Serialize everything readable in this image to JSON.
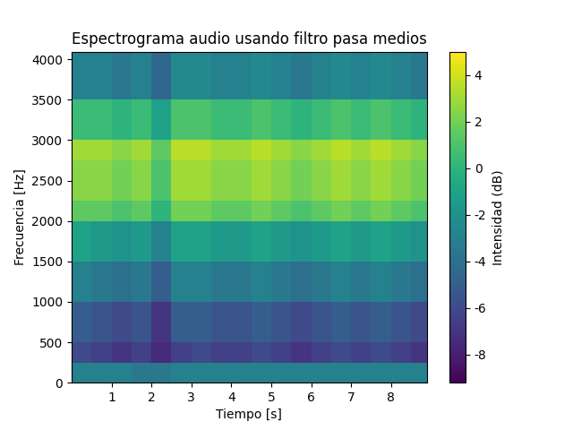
{
  "chart_data": {
    "type": "heatmap",
    "title": "Espectrograma audio usando filtro pasa medios",
    "x_label": "Tiempo [s]",
    "y_label": "Frecuencia [Hz]",
    "colorbar_label": "Intensidad (dB)",
    "x_edges": [
      0,
      0.5,
      1,
      1.5,
      2,
      2.5,
      3,
      3.5,
      4,
      4.5,
      5,
      5.5,
      6,
      6.5,
      7,
      7.5,
      8,
      8.5,
      8.9
    ],
    "y_edges": [
      0,
      250,
      500,
      1000,
      1500,
      2000,
      2250,
      2500,
      2750,
      3000,
      3500,
      4096
    ],
    "values": [
      [
        -3,
        -3,
        -3,
        -3.5,
        -3.5,
        -3,
        -3,
        -3,
        -3,
        -3,
        -3,
        -3,
        -3,
        -3,
        -3,
        -3,
        -3,
        -3
      ],
      [
        -6,
        -6.5,
        -7,
        -6.5,
        -7.5,
        -6.5,
        -6,
        -6.5,
        -6.5,
        -6,
        -6.5,
        -7,
        -6.5,
        -6,
        -6.5,
        -6,
        -6.5,
        -7
      ],
      [
        -5,
        -5.5,
        -6,
        -5.5,
        -7,
        -5,
        -5,
        -5.5,
        -5.5,
        -5,
        -5.5,
        -6,
        -5.5,
        -5,
        -5.5,
        -5,
        -5.5,
        -6
      ],
      [
        -3,
        -3.5,
        -4,
        -3.5,
        -5,
        -3,
        -3,
        -3.5,
        -3.5,
        -3,
        -3.5,
        -4,
        -3.5,
        -3,
        -3.5,
        -3,
        -3.5,
        -4
      ],
      [
        -1,
        -1.5,
        -2,
        -1.5,
        -3,
        -1,
        -1,
        -1.5,
        -1.5,
        -1,
        -1.5,
        -2,
        -1.5,
        -1,
        -1.5,
        -1,
        -1.5,
        -2
      ],
      [
        1.5,
        1.5,
        1,
        1.5,
        0,
        2,
        2,
        1.5,
        1.5,
        2,
        1.5,
        1,
        1.5,
        2,
        1.5,
        2,
        1.5,
        1
      ],
      [
        2.5,
        2.5,
        2,
        2.5,
        1,
        3,
        3,
        2.5,
        2.5,
        3,
        2.5,
        2,
        2.5,
        3,
        2.5,
        3,
        2.5,
        2
      ],
      [
        2.5,
        2.5,
        2,
        2.5,
        1,
        3,
        3,
        2.5,
        2.5,
        3,
        2.5,
        2,
        2.5,
        3,
        2.5,
        3,
        2.5,
        2
      ],
      [
        3,
        3,
        2.5,
        3,
        1.5,
        3.5,
        3.5,
        3,
        3,
        3.5,
        3,
        2.5,
        3,
        3.5,
        3,
        3.5,
        3,
        2.5
      ],
      [
        0.5,
        0.5,
        0,
        0.5,
        -1,
        1,
        1,
        0.5,
        0.5,
        1,
        0.5,
        0,
        0.5,
        1,
        0.5,
        1,
        0.5,
        0
      ],
      [
        -3,
        -3,
        -3.5,
        -3,
        -4.5,
        -2.5,
        -2.5,
        -3,
        -3,
        -2.5,
        -3,
        -3.5,
        -3,
        -2.5,
        -3,
        -2.5,
        -3,
        -3.5
      ]
    ],
    "xlim": [
      0,
      8.9
    ],
    "xticks": [
      1,
      2,
      3,
      4,
      5,
      6,
      7,
      8
    ],
    "ylim": [
      0,
      4096
    ],
    "yticks": [
      0,
      500,
      1000,
      1500,
      2000,
      2500,
      3000,
      3500,
      4000
    ],
    "zlim": [
      -9.2,
      5
    ],
    "zticks": [
      -8,
      -6,
      -4,
      -2,
      0,
      2,
      4
    ]
  }
}
